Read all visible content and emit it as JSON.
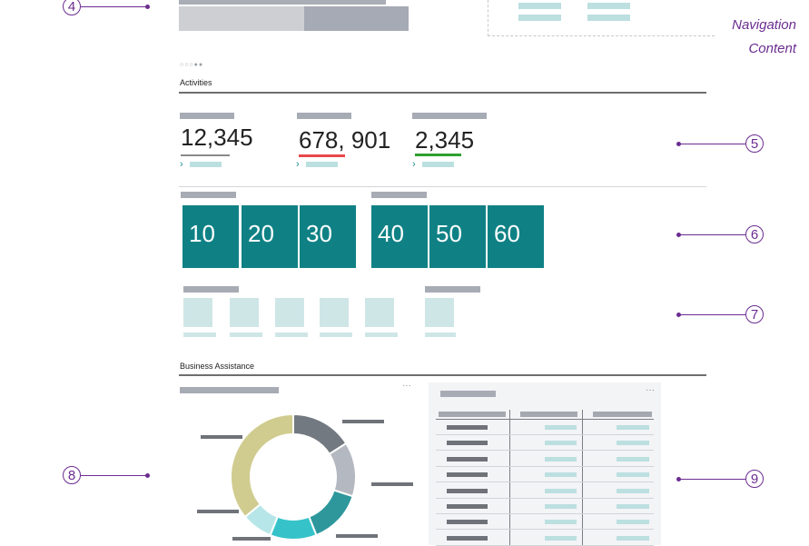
{
  "callouts": {
    "c4": "4",
    "c5": "5",
    "c6": "6",
    "c7": "7",
    "c8": "8",
    "c9": "9"
  },
  "navigation": {
    "label_navigation": "Navigation",
    "label_content": "Content"
  },
  "activities": {
    "title": "Activities",
    "kpis": [
      {
        "value": "12,345",
        "underline_color": "#8a8a8a"
      },
      {
        "value": "678, 901",
        "underline_color": "#e8484d"
      },
      {
        "value": "2,345",
        "underline_color": "#2fa02f"
      }
    ]
  },
  "tiles": {
    "group1": [
      "10",
      "20",
      "30"
    ],
    "group2": [
      "40",
      "50",
      "60"
    ],
    "color": "#0f8185"
  },
  "business": {
    "title": "Business Assistance",
    "more_glyph": "···"
  },
  "chart_data": {
    "type": "pie",
    "donut": true,
    "values": [
      16,
      14,
      14,
      12,
      8,
      36
    ],
    "colors": [
      "#737980",
      "#b4b8c0",
      "#2e979c",
      "#35c3c9",
      "#b7e6e8",
      "#d0cc8f"
    ]
  }
}
